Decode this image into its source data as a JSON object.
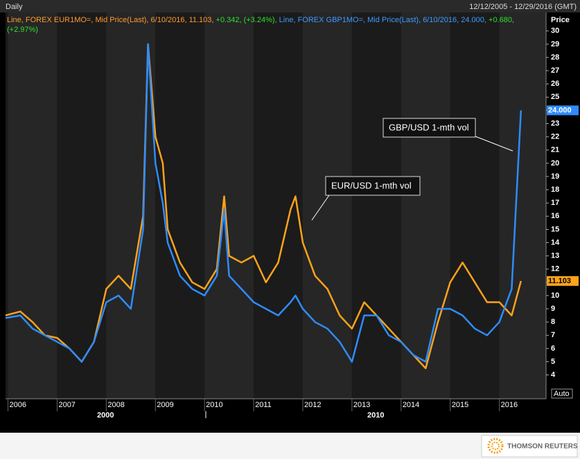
{
  "chart_data": {
    "type": "line",
    "frequency": "Daily",
    "date_range": "12/12/2005 - 12/29/2016 (GMT)",
    "axis_title": "Price",
    "legend_parts": [
      {
        "text": "Line, FOREX EUR1MO=, Mid Price(Last), 6/10/2016, 11.103,",
        "color": "#ff9a2e"
      },
      {
        "text": "+0.342, (+3.24%),",
        "color": "#2fe02f"
      },
      {
        "text": "Line, FOREX GBP1MO=, Mid Price(Last), 6/10/2016, 24.000,",
        "color": "#3d9bff"
      },
      {
        "text": "+0.680, (+2.97%)",
        "color": "#2fe02f"
      }
    ],
    "scale_mode": "Auto",
    "decade_labels": [
      "2000",
      "2010"
    ],
    "footer": "THOMSON REUTERS",
    "x": [
      2005.95,
      2006.25,
      2006.5,
      2006.75,
      2007.0,
      2007.25,
      2007.5,
      2007.75,
      2008.0,
      2008.25,
      2008.5,
      2008.75,
      2008.85,
      2009.0,
      2009.15,
      2009.25,
      2009.5,
      2009.75,
      2010.0,
      2010.25,
      2010.4,
      2010.5,
      2010.75,
      2011.0,
      2011.25,
      2011.5,
      2011.75,
      2011.85,
      2012.0,
      2012.25,
      2012.5,
      2012.75,
      2013.0,
      2013.25,
      2013.5,
      2013.75,
      2014.0,
      2014.25,
      2014.5,
      2014.75,
      2015.0,
      2015.25,
      2015.5,
      2015.75,
      2016.0,
      2016.25,
      2016.44
    ],
    "series": [
      {
        "name": "EUR/USD 1-mth vol",
        "color": "#ffa31a",
        "values": [
          8.5,
          8.8,
          8.0,
          7.0,
          6.8,
          6.0,
          5.0,
          6.5,
          10.5,
          11.5,
          10.5,
          16,
          29,
          22,
          20,
          15,
          12.5,
          11,
          10.5,
          12,
          17.5,
          13,
          12.5,
          13,
          11,
          12.5,
          16.5,
          17.5,
          14,
          11.5,
          10.5,
          8.5,
          7.5,
          9.5,
          8.5,
          7.5,
          6.5,
          5.5,
          4.5,
          8,
          11,
          12.5,
          11,
          9.5,
          9.5,
          8.5,
          11.103
        ],
        "value_labels": [
          null,
          null,
          null,
          null,
          null,
          null,
          null,
          null,
          null,
          null,
          null,
          null,
          null,
          null,
          null,
          null,
          null,
          null,
          null,
          null,
          null,
          null,
          null,
          null,
          null,
          null,
          null,
          null,
          null,
          null,
          null,
          null,
          null,
          null,
          null,
          null,
          null,
          null,
          null,
          null,
          null,
          null,
          null,
          null,
          null,
          null,
          "11.103"
        ]
      },
      {
        "name": "GBP/USD 1-mth vol",
        "color": "#2f8cff",
        "values": [
          8.3,
          8.5,
          7.5,
          7.0,
          6.5,
          6.0,
          5.0,
          6.5,
          9.5,
          10.0,
          9.0,
          15,
          29,
          20,
          17,
          14,
          11.5,
          10.5,
          10.0,
          11.5,
          16.5,
          11.5,
          10.5,
          9.5,
          9.0,
          8.5,
          9.5,
          10,
          9.0,
          8.0,
          7.5,
          6.5,
          5.0,
          8.5,
          8.5,
          7.0,
          6.5,
          5.5,
          5.0,
          9,
          9,
          8.5,
          7.5,
          7.0,
          8.0,
          10.5,
          24.0
        ],
        "value_labels": [
          null,
          null,
          null,
          null,
          null,
          null,
          null,
          null,
          null,
          null,
          null,
          null,
          null,
          null,
          null,
          null,
          null,
          null,
          null,
          null,
          null,
          null,
          null,
          null,
          null,
          null,
          null,
          null,
          null,
          null,
          null,
          null,
          null,
          null,
          null,
          null,
          null,
          null,
          null,
          null,
          null,
          null,
          null,
          null,
          null,
          null,
          "24.000"
        ]
      }
    ],
    "xlim": [
      2005.95,
      2016.95
    ],
    "xticks": [
      2006,
      2007,
      2008,
      2009,
      2010,
      2011,
      2012,
      2013,
      2014,
      2015,
      2016
    ],
    "ylim": [
      2.2,
      31.4
    ],
    "yticks": [
      4,
      5,
      6,
      7,
      8,
      9,
      10,
      11,
      12,
      13,
      14,
      15,
      16,
      17,
      18,
      19,
      20,
      21,
      22,
      23,
      24,
      25,
      26,
      27,
      28,
      29,
      30
    ]
  }
}
